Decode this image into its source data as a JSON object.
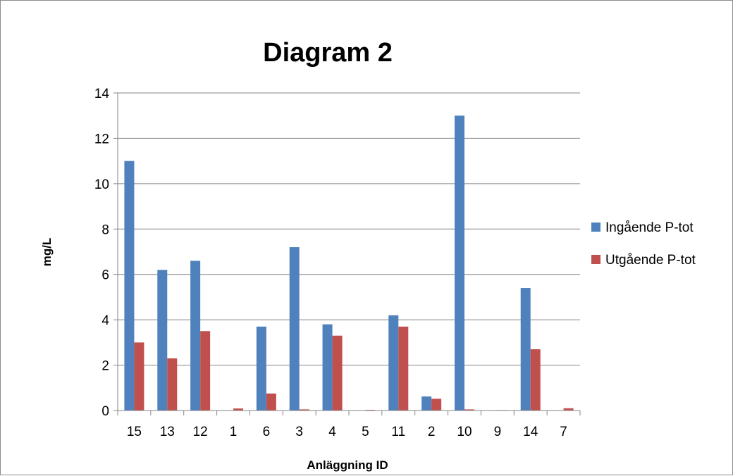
{
  "chart_data": {
    "type": "bar",
    "title": "Diagram 2",
    "xlabel": "Anläggning ID",
    "ylabel": "mg/L",
    "ylim": [
      0,
      14
    ],
    "yticks": [
      0,
      2,
      4,
      6,
      8,
      10,
      12,
      14
    ],
    "grid": true,
    "legend_position": "right",
    "categories": [
      "15",
      "13",
      "12",
      "1",
      "6",
      "3",
      "4",
      "5",
      "11",
      "2",
      "10",
      "9",
      "14",
      "7"
    ],
    "series": [
      {
        "name": "Ingående P-tot",
        "color": "#4f81bd",
        "values": [
          11.0,
          6.2,
          6.6,
          0.0,
          3.7,
          7.2,
          3.8,
          0.0,
          4.2,
          0.62,
          13.0,
          0.0,
          5.4,
          0.0
        ]
      },
      {
        "name": "Utgående P-tot",
        "color": "#c0504d",
        "values": [
          3.0,
          2.3,
          3.5,
          0.09,
          0.75,
          0.05,
          3.3,
          0.03,
          3.7,
          0.52,
          0.05,
          0.02,
          2.7,
          0.1
        ]
      }
    ]
  }
}
